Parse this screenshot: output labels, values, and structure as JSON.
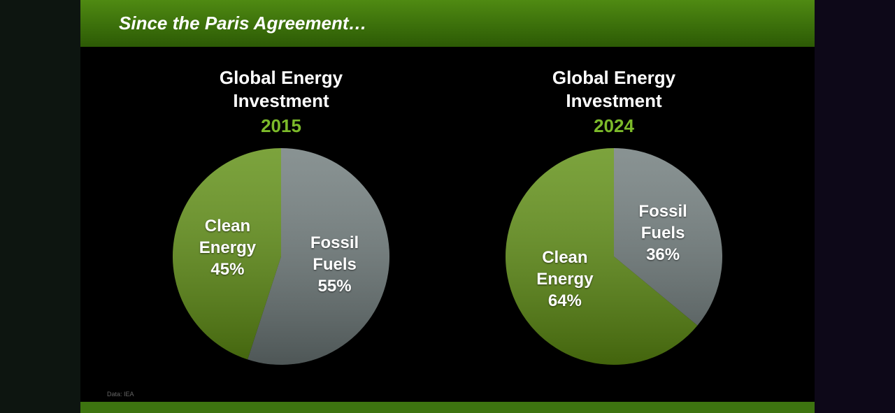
{
  "slide": {
    "title": "Since the Paris Agreement…",
    "source": "Data: IEA"
  },
  "chart_data": [
    {
      "type": "pie",
      "title": "Global Energy Investment",
      "subtitle": "2015",
      "categories": [
        "Fossil Fuels",
        "Clean Energy"
      ],
      "values": [
        55,
        45
      ],
      "value_labels": [
        "55%",
        "45%"
      ],
      "colors": [
        "#6f7b7b",
        "#5f8f12"
      ]
    },
    {
      "type": "pie",
      "title": "Global Energy Investment",
      "subtitle": "2024",
      "categories": [
        "Fossil Fuels",
        "Clean Energy"
      ],
      "values": [
        36,
        64
      ],
      "value_labels": [
        "36%",
        "64%"
      ],
      "colors": [
        "#6f7b7b",
        "#5f8f12"
      ]
    }
  ]
}
